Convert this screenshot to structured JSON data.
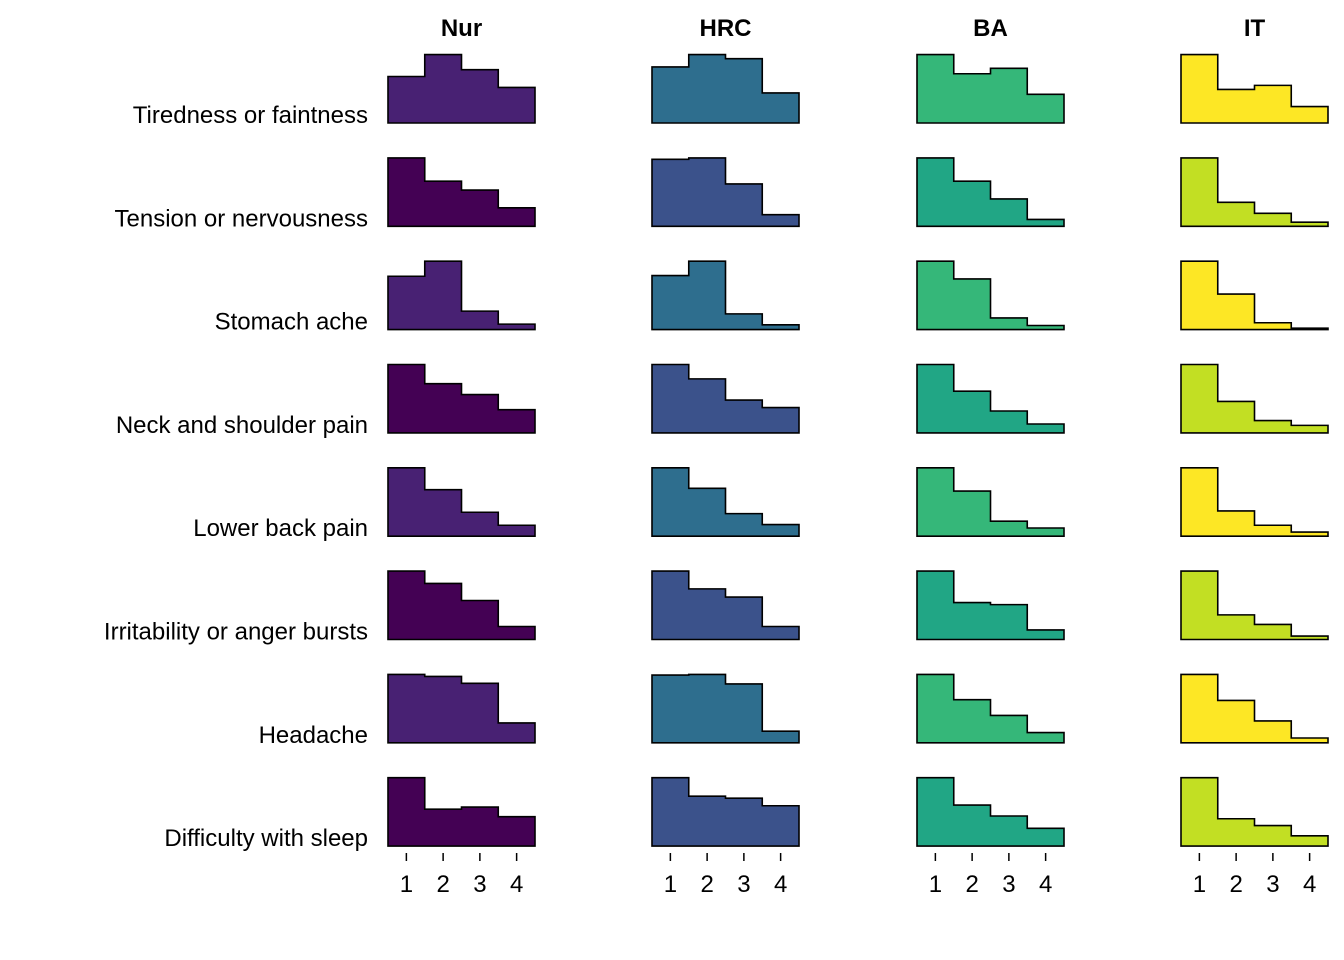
{
  "chart_data": {
    "type": "bar",
    "layout": "small-multiples grid of step histograms (rows = symptoms, columns = groups)",
    "x_ticks": [
      1,
      2,
      3,
      4
    ],
    "grid": false,
    "legend": "none",
    "columns": [
      {
        "title": "Nur",
        "color": "#482173",
        "alt_color": "#440154"
      },
      {
        "title": "HRC",
        "color": "#2e6e8e",
        "alt_color": "#3b528b"
      },
      {
        "title": "BA",
        "color": "#35b779",
        "alt_color": "#21a685"
      },
      {
        "title": "IT",
        "color": "#fde725",
        "alt_color": "#c2df23"
      }
    ],
    "rows": [
      {
        "label": "Tiredness or faintness",
        "alt": false,
        "series": [
          [
            0.68,
            1.0,
            0.78,
            0.52
          ],
          [
            0.82,
            1.0,
            0.94,
            0.44
          ],
          [
            1.0,
            0.72,
            0.8,
            0.42
          ],
          [
            1.0,
            0.49,
            0.55,
            0.24
          ]
        ]
      },
      {
        "label": "Tension or nervousness",
        "alt": true,
        "series": [
          [
            1.0,
            0.66,
            0.53,
            0.27
          ],
          [
            0.98,
            1.0,
            0.62,
            0.17
          ],
          [
            1.0,
            0.66,
            0.4,
            0.1
          ],
          [
            1.0,
            0.35,
            0.19,
            0.06
          ]
        ]
      },
      {
        "label": "Stomach ache",
        "alt": false,
        "series": [
          [
            0.78,
            1.0,
            0.27,
            0.08
          ],
          [
            0.79,
            1.0,
            0.23,
            0.07
          ],
          [
            1.0,
            0.74,
            0.17,
            0.06
          ],
          [
            1.0,
            0.52,
            0.1,
            0.02
          ]
        ]
      },
      {
        "label": "Neck and shoulder pain",
        "alt": true,
        "series": [
          [
            1.0,
            0.72,
            0.56,
            0.34
          ],
          [
            1.0,
            0.79,
            0.48,
            0.37
          ],
          [
            1.0,
            0.61,
            0.32,
            0.13
          ],
          [
            1.0,
            0.46,
            0.18,
            0.11
          ]
        ]
      },
      {
        "label": "Lower back pain",
        "alt": false,
        "series": [
          [
            1.0,
            0.68,
            0.35,
            0.16
          ],
          [
            1.0,
            0.7,
            0.33,
            0.17
          ],
          [
            1.0,
            0.66,
            0.22,
            0.12
          ],
          [
            1.0,
            0.37,
            0.16,
            0.06
          ]
        ]
      },
      {
        "label": "Irritability or anger bursts",
        "alt": true,
        "series": [
          [
            1.0,
            0.82,
            0.57,
            0.19
          ],
          [
            1.0,
            0.74,
            0.62,
            0.19
          ],
          [
            1.0,
            0.54,
            0.51,
            0.14
          ],
          [
            1.0,
            0.36,
            0.22,
            0.05
          ]
        ]
      },
      {
        "label": "Headache",
        "alt": false,
        "series": [
          [
            1.0,
            0.97,
            0.87,
            0.29
          ],
          [
            0.99,
            1.0,
            0.86,
            0.17
          ],
          [
            1.0,
            0.63,
            0.4,
            0.15
          ],
          [
            1.0,
            0.62,
            0.32,
            0.07
          ]
        ]
      },
      {
        "label": "Difficulty with sleep",
        "alt": true,
        "series": [
          [
            1.0,
            0.54,
            0.57,
            0.43
          ],
          [
            1.0,
            0.73,
            0.7,
            0.59
          ],
          [
            1.0,
            0.6,
            0.44,
            0.26
          ],
          [
            1.0,
            0.4,
            0.3,
            0.15
          ]
        ]
      }
    ]
  }
}
